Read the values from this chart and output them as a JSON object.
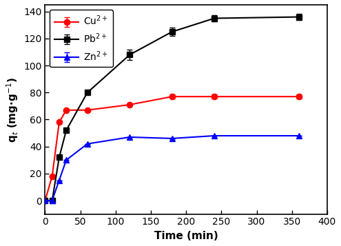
{
  "Cu": {
    "x": [
      0,
      10,
      20,
      30,
      60,
      120,
      180,
      240,
      360
    ],
    "y": [
      0,
      18,
      58,
      67,
      67,
      71,
      77,
      77,
      77
    ],
    "yerr": [
      0,
      0,
      0,
      0,
      0,
      0,
      1.5,
      1.5,
      1.5
    ],
    "color": "red",
    "marker": "o",
    "label": "Cu$^{2+}$"
  },
  "Pb": {
    "x": [
      0,
      10,
      20,
      30,
      60,
      120,
      180,
      240,
      360
    ],
    "y": [
      0,
      0,
      32,
      52,
      80,
      108,
      125,
      135,
      136
    ],
    "yerr": [
      0,
      0,
      0,
      0,
      0,
      4,
      3,
      2.5,
      2.5
    ],
    "color": "black",
    "marker": "s",
    "label": "Pb$^{2+}$"
  },
  "Zn": {
    "x": [
      0,
      10,
      20,
      30,
      60,
      120,
      180,
      240,
      360
    ],
    "y": [
      0,
      0,
      15,
      30,
      42,
      47,
      46,
      48,
      48
    ],
    "yerr": [
      0,
      0,
      0,
      0,
      0,
      0,
      0,
      0,
      0
    ],
    "color": "blue",
    "marker": "^",
    "label": "Zn$^{2+}$"
  },
  "xlabel": "Time (min)",
  "ylabel": "q$_{t}$ (mg·g$^{-1}$)",
  "xlim": [
    0,
    400
  ],
  "ylim": [
    -10,
    145
  ],
  "xticks": [
    0,
    50,
    100,
    150,
    200,
    250,
    300,
    350,
    400
  ],
  "yticks": [
    0,
    20,
    40,
    60,
    80,
    100,
    120,
    140
  ],
  "figsize": [
    4.95,
    3.57
  ],
  "dpi": 100
}
